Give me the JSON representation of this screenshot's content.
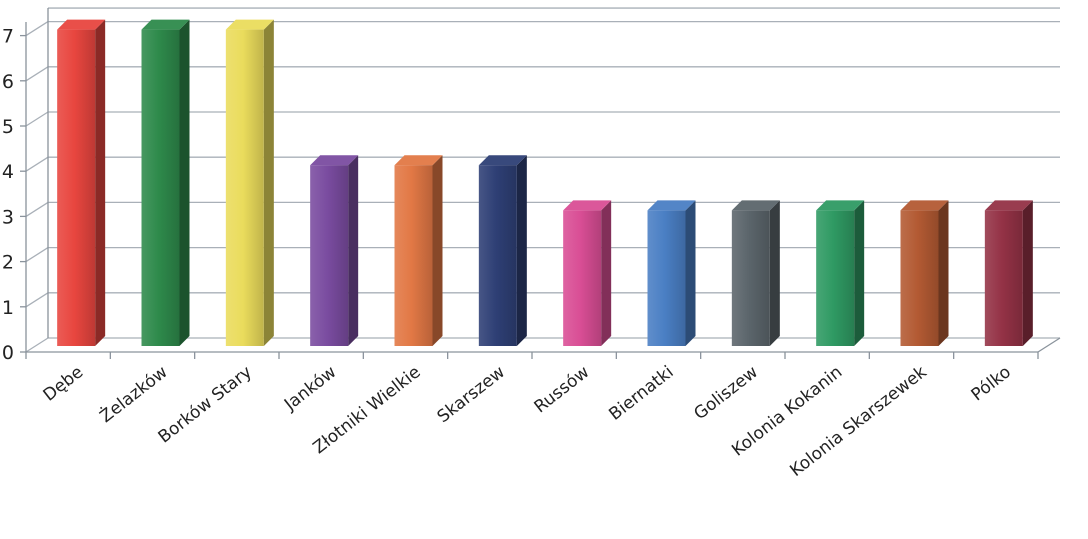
{
  "chart_data": {
    "type": "bar",
    "categories": [
      "Dębe",
      "Żelazków",
      "Borków Stary",
      "Janków",
      "Złotniki Wielkie",
      "Skarszew",
      "Russów",
      "Biernatki",
      "Goliszew",
      "Kolonia Kokanin",
      "Kolonia Skarszewek",
      "Pólko"
    ],
    "values": [
      7,
      7,
      7,
      4,
      4,
      4,
      3,
      3,
      3,
      3,
      3,
      3
    ],
    "colors": [
      "#e8463f",
      "#2e8a4b",
      "#eadc5c",
      "#7a4ca0",
      "#e27845",
      "#2e3f75",
      "#d94e95",
      "#4a7fc4",
      "#5b656b",
      "#2f9a63",
      "#b35a33",
      "#943246"
    ],
    "yticks": [
      0,
      1,
      2,
      3,
      4,
      5,
      6,
      7
    ],
    "ylim": [
      0,
      7.3
    ],
    "grid": true,
    "style": "3d-column",
    "title": "",
    "xlabel": "",
    "ylabel": ""
  }
}
